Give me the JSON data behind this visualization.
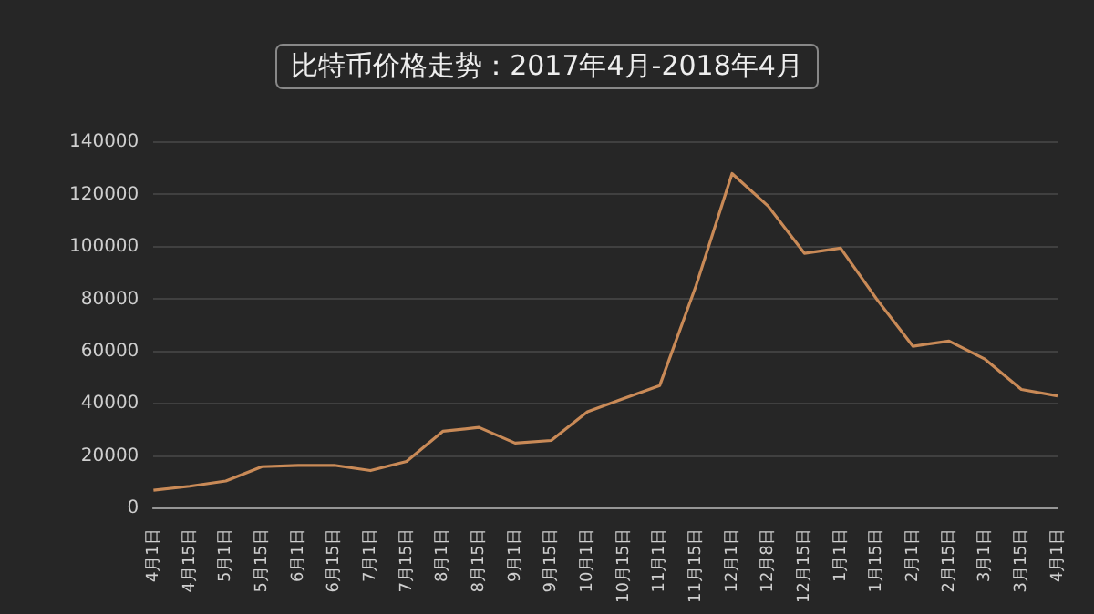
{
  "chart_data": {
    "type": "line",
    "title": "比特币价格走势：2017年4月-2018年4月",
    "categories": [
      "4月1日",
      "4月15日",
      "5月1日",
      "5月15日",
      "6月1日",
      "6月15日",
      "7月1日",
      "7月15日",
      "8月1日",
      "8月15日",
      "9月1日",
      "9月15日",
      "10月1日",
      "10月15日",
      "11月1日",
      "11月15日",
      "12月1日",
      "12月8日",
      "12月15日",
      "1月1日",
      "1月15日",
      "2月1日",
      "2月15日",
      "3月1日",
      "3月15日",
      "4月1日"
    ],
    "series": [
      {
        "color": "#c98a57",
        "values": [
          7000,
          8500,
          10500,
          16000,
          16500,
          16500,
          14500,
          18000,
          29500,
          31000,
          25000,
          26000,
          37000,
          42000,
          47000,
          85000,
          128000,
          115500,
          97500,
          99500,
          80000,
          62000,
          64000,
          57000,
          45500,
          43000
        ]
      }
    ],
    "ylim": [
      0,
      140000
    ],
    "yticks": [
      0,
      20000,
      40000,
      60000,
      80000,
      100000,
      120000,
      140000
    ],
    "grid": "y",
    "legend": false,
    "marker": "none",
    "line_style": "solid"
  }
}
